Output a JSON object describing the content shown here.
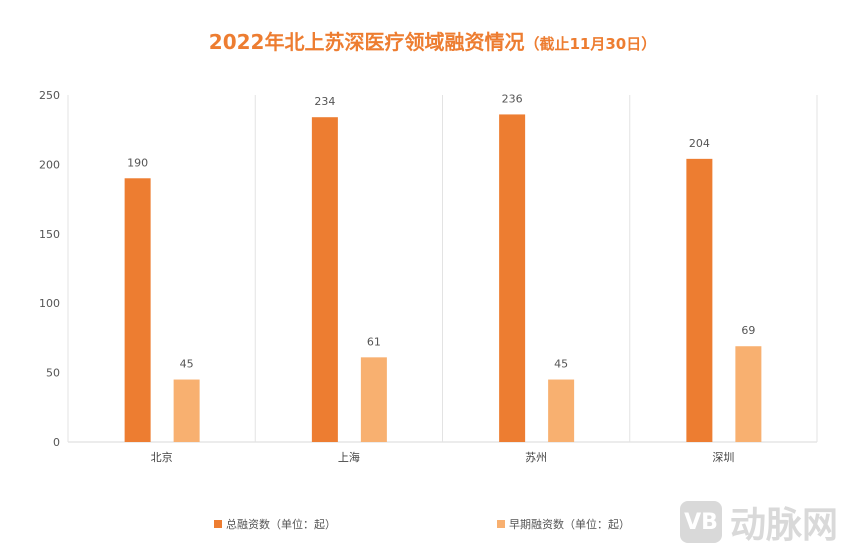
{
  "chart_data": {
    "type": "bar",
    "title": "2022年北上苏深医疗领域融资情况",
    "subtitle": "（截止11月30日）",
    "categories": [
      "北京",
      "上海",
      "苏州",
      "深圳"
    ],
    "series": [
      {
        "name": "总融资数（单位：起）",
        "values": [
          190,
          234,
          236,
          204
        ],
        "color": "#ed7d31"
      },
      {
        "name": "早期融资数（单位：起）",
        "values": [
          45,
          61,
          45,
          69
        ],
        "color": "#f8b070"
      }
    ],
    "ylim": [
      0,
      250
    ],
    "yticks": [
      0,
      50,
      100,
      150,
      200,
      250
    ],
    "grid": "vertical category separators",
    "legend": "bottom"
  },
  "watermark": {
    "logo": "VB",
    "text": "动脉网"
  }
}
